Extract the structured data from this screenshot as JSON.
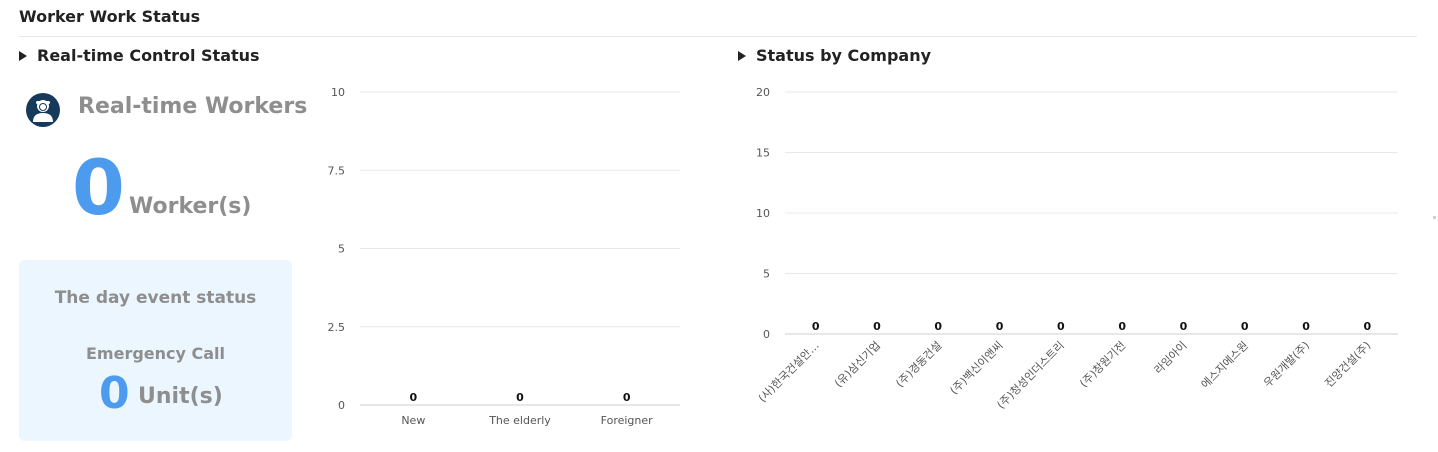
{
  "page": {
    "title": "Worker Work Status"
  },
  "realtime": {
    "section_title": "Real-time Control Status",
    "icon": "worker-avatar-icon",
    "workers_title": "Real-time Workers",
    "workers_count": "0",
    "workers_unit": "Worker(s)",
    "event_box": {
      "title": "The day event status",
      "label": "Emergency Call",
      "count": "0",
      "unit": "Unit(s)"
    }
  },
  "company": {
    "section_title": "Status by Company"
  },
  "colors": {
    "accent": "#4d9bee",
    "muted_text": "#8e8e8e",
    "event_bg": "#ebf6ff",
    "avatar_bg": "#163a5c"
  },
  "chart_data": [
    {
      "type": "bar",
      "categories": [
        "New",
        "The elderly",
        "Foreigner"
      ],
      "values": [
        0,
        0,
        0
      ],
      "value_labels": [
        "0",
        "0",
        "0"
      ],
      "y_ticks": [
        "0",
        "2.5",
        "5",
        "7.5",
        "10"
      ],
      "ylim": [
        0,
        10
      ],
      "grid": true,
      "legend": "none"
    },
    {
      "type": "bar",
      "categories": [
        "(사)한국건설안…",
        "(유)삼신기업",
        "(주)경동건설",
        "(주)백신이앤씨",
        "(주)청성인더스트리",
        "(주)창원기전",
        "라임아이",
        "에스지에스원",
        "우원개발(주)",
        "진양건설(주)"
      ],
      "values": [
        0,
        0,
        0,
        0,
        0,
        0,
        0,
        0,
        0,
        0
      ],
      "value_labels": [
        "0",
        "0",
        "0",
        "0",
        "0",
        "0",
        "0",
        "0",
        "0",
        "0"
      ],
      "y_ticks": [
        "0",
        "5",
        "10",
        "15",
        "20"
      ],
      "ylim": [
        0,
        20
      ],
      "grid": true,
      "legend": "none"
    }
  ]
}
